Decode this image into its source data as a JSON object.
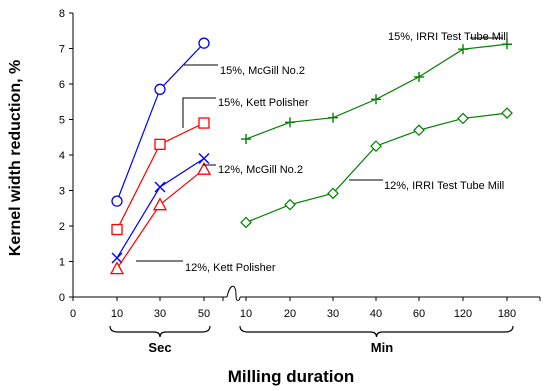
{
  "chart_data": {
    "type": "line",
    "xlabel": "Milling duration",
    "ylabel": "Kernel width reduction, %",
    "ylim": [
      0,
      8
    ],
    "yticks": [
      "0",
      "1",
      "2",
      "3",
      "4",
      "5",
      "6",
      "7",
      "8"
    ],
    "grid": false,
    "legend": "none (series labelled by callouts)",
    "x_groups": [
      {
        "label": "Sec",
        "ticks": [
          "10",
          "30",
          "50"
        ]
      },
      {
        "label": "Min",
        "ticks": [
          "10",
          "20",
          "30",
          "40",
          "60",
          "120",
          "180"
        ]
      }
    ],
    "x_origin_label": "0",
    "series": [
      {
        "name": "15%, McGill No.2",
        "group": "Sec",
        "marker": "circle",
        "color": "#0000ff",
        "x": [
          "10",
          "30",
          "50"
        ],
        "values": [
          2.7,
          5.85,
          7.15
        ]
      },
      {
        "name": "15%, Kett Polisher",
        "group": "Sec",
        "marker": "square",
        "color": "#ff0000",
        "x": [
          "10",
          "30",
          "50"
        ],
        "values": [
          1.9,
          4.3,
          4.9
        ]
      },
      {
        "name": "12%, McGill No.2",
        "group": "Sec",
        "marker": "x",
        "color": "#0000ff",
        "x": [
          "10",
          "30",
          "50"
        ],
        "values": [
          1.1,
          3.1,
          3.9
        ]
      },
      {
        "name": "12%, Kett Polisher",
        "group": "Sec",
        "marker": "triangle",
        "color": "#ff0000",
        "x": [
          "10",
          "30",
          "50"
        ],
        "values": [
          0.8,
          2.6,
          3.6
        ]
      },
      {
        "name": "15%, IRRI Test Tube Mill",
        "group": "Min",
        "marker": "plus",
        "color": "#008000",
        "x": [
          "10",
          "20",
          "30",
          "40",
          "60",
          "120",
          "180"
        ],
        "values": [
          4.45,
          4.92,
          5.05,
          5.57,
          6.2,
          6.98,
          7.12
        ]
      },
      {
        "name": "12%, IRRI Test Tube Mill",
        "group": "Min",
        "marker": "diamond",
        "color": "#008000",
        "x": [
          "10",
          "20",
          "30",
          "40",
          "60",
          "120",
          "180"
        ],
        "values": [
          2.1,
          2.6,
          2.92,
          4.25,
          4.7,
          5.03,
          5.18
        ]
      }
    ]
  }
}
